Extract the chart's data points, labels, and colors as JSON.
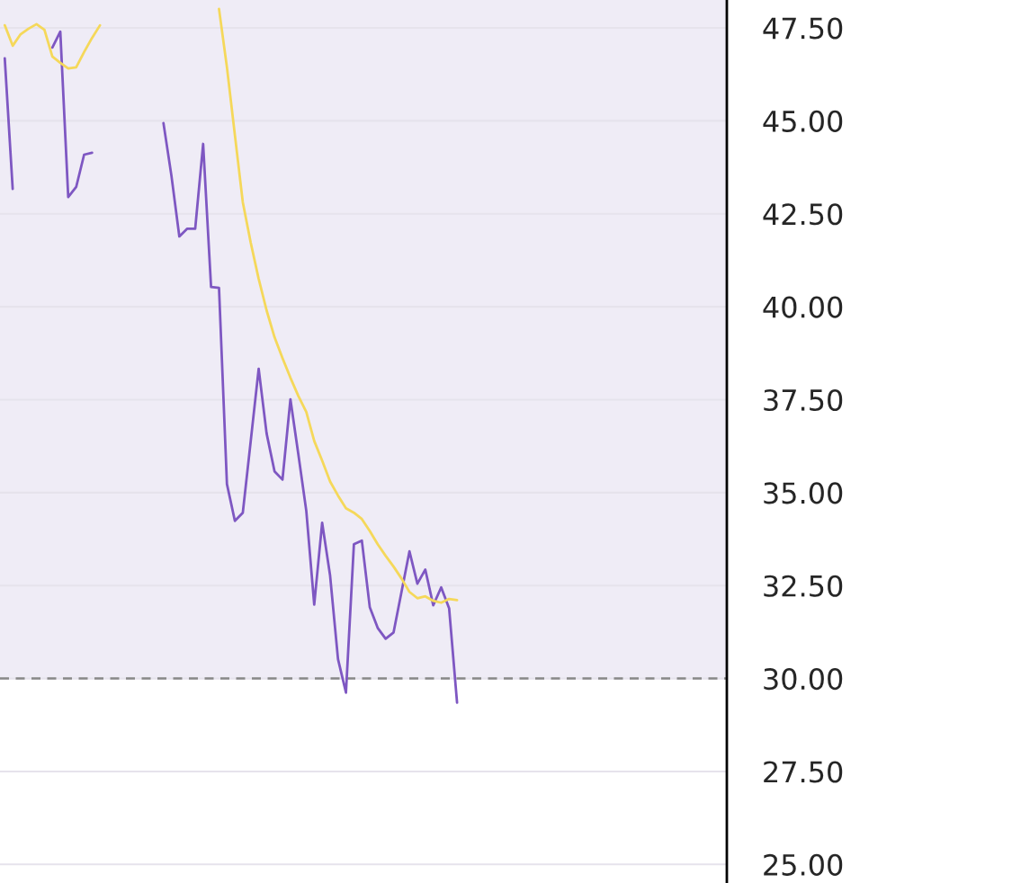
{
  "chart_data": {
    "type": "line",
    "categories": [
      null,
      null,
      null,
      null,
      null,
      null,
      null,
      null,
      null,
      null,
      null,
      null,
      null,
      null,
      null,
      null,
      null,
      null,
      null,
      null,
      null,
      null,
      null,
      null,
      null,
      null,
      null,
      null,
      null,
      null,
      null,
      null,
      null,
      null,
      null,
      null,
      null,
      null,
      null,
      null,
      null,
      null,
      null,
      null,
      null,
      null,
      null,
      null,
      null,
      null,
      null,
      null,
      null,
      null,
      null,
      null,
      null,
      null,
      null,
      null,
      null,
      null,
      null,
      null,
      null,
      null,
      null,
      null,
      null,
      null,
      null,
      null,
      null,
      null,
      null,
      null,
      null,
      null,
      null,
      null,
      null,
      null,
      null,
      null,
      null,
      null,
      null,
      null,
      null,
      null,
      null,
      null
    ],
    "series": [
      {
        "color": "#7e57c2",
        "values": [
          46.68,
          43.17,
          null,
          null,
          null,
          null,
          46.97,
          47.4,
          42.95,
          43.22,
          44.09,
          44.14,
          null,
          null,
          null,
          null,
          null,
          null,
          null,
          null,
          44.94,
          43.53,
          41.89,
          42.1,
          42.1,
          44.38,
          40.53,
          40.51,
          35.23,
          34.24,
          34.46,
          36.39,
          38.33,
          36.59,
          35.57,
          35.35,
          37.51,
          36.03,
          34.51,
          31.99,
          34.19,
          32.77,
          30.52,
          29.62,
          33.61,
          33.71,
          31.92,
          31.36,
          31.07,
          31.24,
          32.33,
          33.42,
          32.55,
          32.93,
          31.97,
          32.45,
          31.89,
          29.35,
          null,
          null,
          null,
          null,
          null,
          null,
          null,
          null,
          null,
          null,
          null,
          null,
          null,
          null,
          null,
          null,
          null,
          null,
          null,
          null,
          null,
          null,
          null,
          null,
          null,
          null,
          null,
          null,
          null,
          null,
          null,
          null,
          null,
          null
        ]
      },
      {
        "color": "#f5d85a",
        "values": [
          47.57,
          47.02,
          47.33,
          47.48,
          47.6,
          47.45,
          46.73,
          46.56,
          46.41,
          46.44,
          46.85,
          47.23,
          47.57,
          null,
          null,
          null,
          null,
          null,
          null,
          null,
          null,
          null,
          null,
          null,
          null,
          null,
          null,
          48.01,
          46.44,
          44.62,
          42.81,
          41.72,
          40.75,
          39.9,
          39.18,
          38.62,
          38.09,
          37.6,
          37.17,
          36.39,
          35.86,
          35.3,
          34.92,
          34.58,
          34.46,
          34.29,
          33.97,
          33.61,
          33.3,
          33.01,
          32.69,
          32.33,
          32.16,
          32.21,
          32.09,
          32.04,
          32.14,
          32.11,
          null,
          null,
          null,
          null,
          null,
          null,
          null,
          null,
          null,
          null,
          null,
          null,
          null,
          null,
          null,
          null,
          null,
          null,
          null,
          null,
          null,
          null,
          null,
          null,
          null,
          null,
          null,
          null,
          null,
          null,
          null,
          null,
          null,
          null
        ]
      }
    ],
    "ylim": [
      24.5,
      48.25
    ],
    "yticks": [
      {
        "value": 25,
        "label": "25.00"
      },
      {
        "value": 27.5,
        "label": "27.50"
      },
      {
        "value": 30,
        "label": "30.00"
      },
      {
        "value": 32.5,
        "label": "32.50"
      },
      {
        "value": 35,
        "label": "35.00"
      },
      {
        "value": 37.5,
        "label": "37.50"
      },
      {
        "value": 40,
        "label": "40.00"
      },
      {
        "value": 42.5,
        "label": "42.50"
      },
      {
        "value": 45,
        "label": "45.00"
      },
      {
        "value": 47.5,
        "label": "47.50"
      }
    ],
    "ref_lines": [
      {
        "axis": "y",
        "value": 30,
        "color": "#888888",
        "line_style": "dashed"
      }
    ],
    "bands": [
      {
        "axis": "y",
        "from": 30,
        "to": 48.25,
        "color": "#efecf6"
      }
    ],
    "grid": "y",
    "tick_labels": "y",
    "line_style": "solid",
    "marker": "none"
  }
}
